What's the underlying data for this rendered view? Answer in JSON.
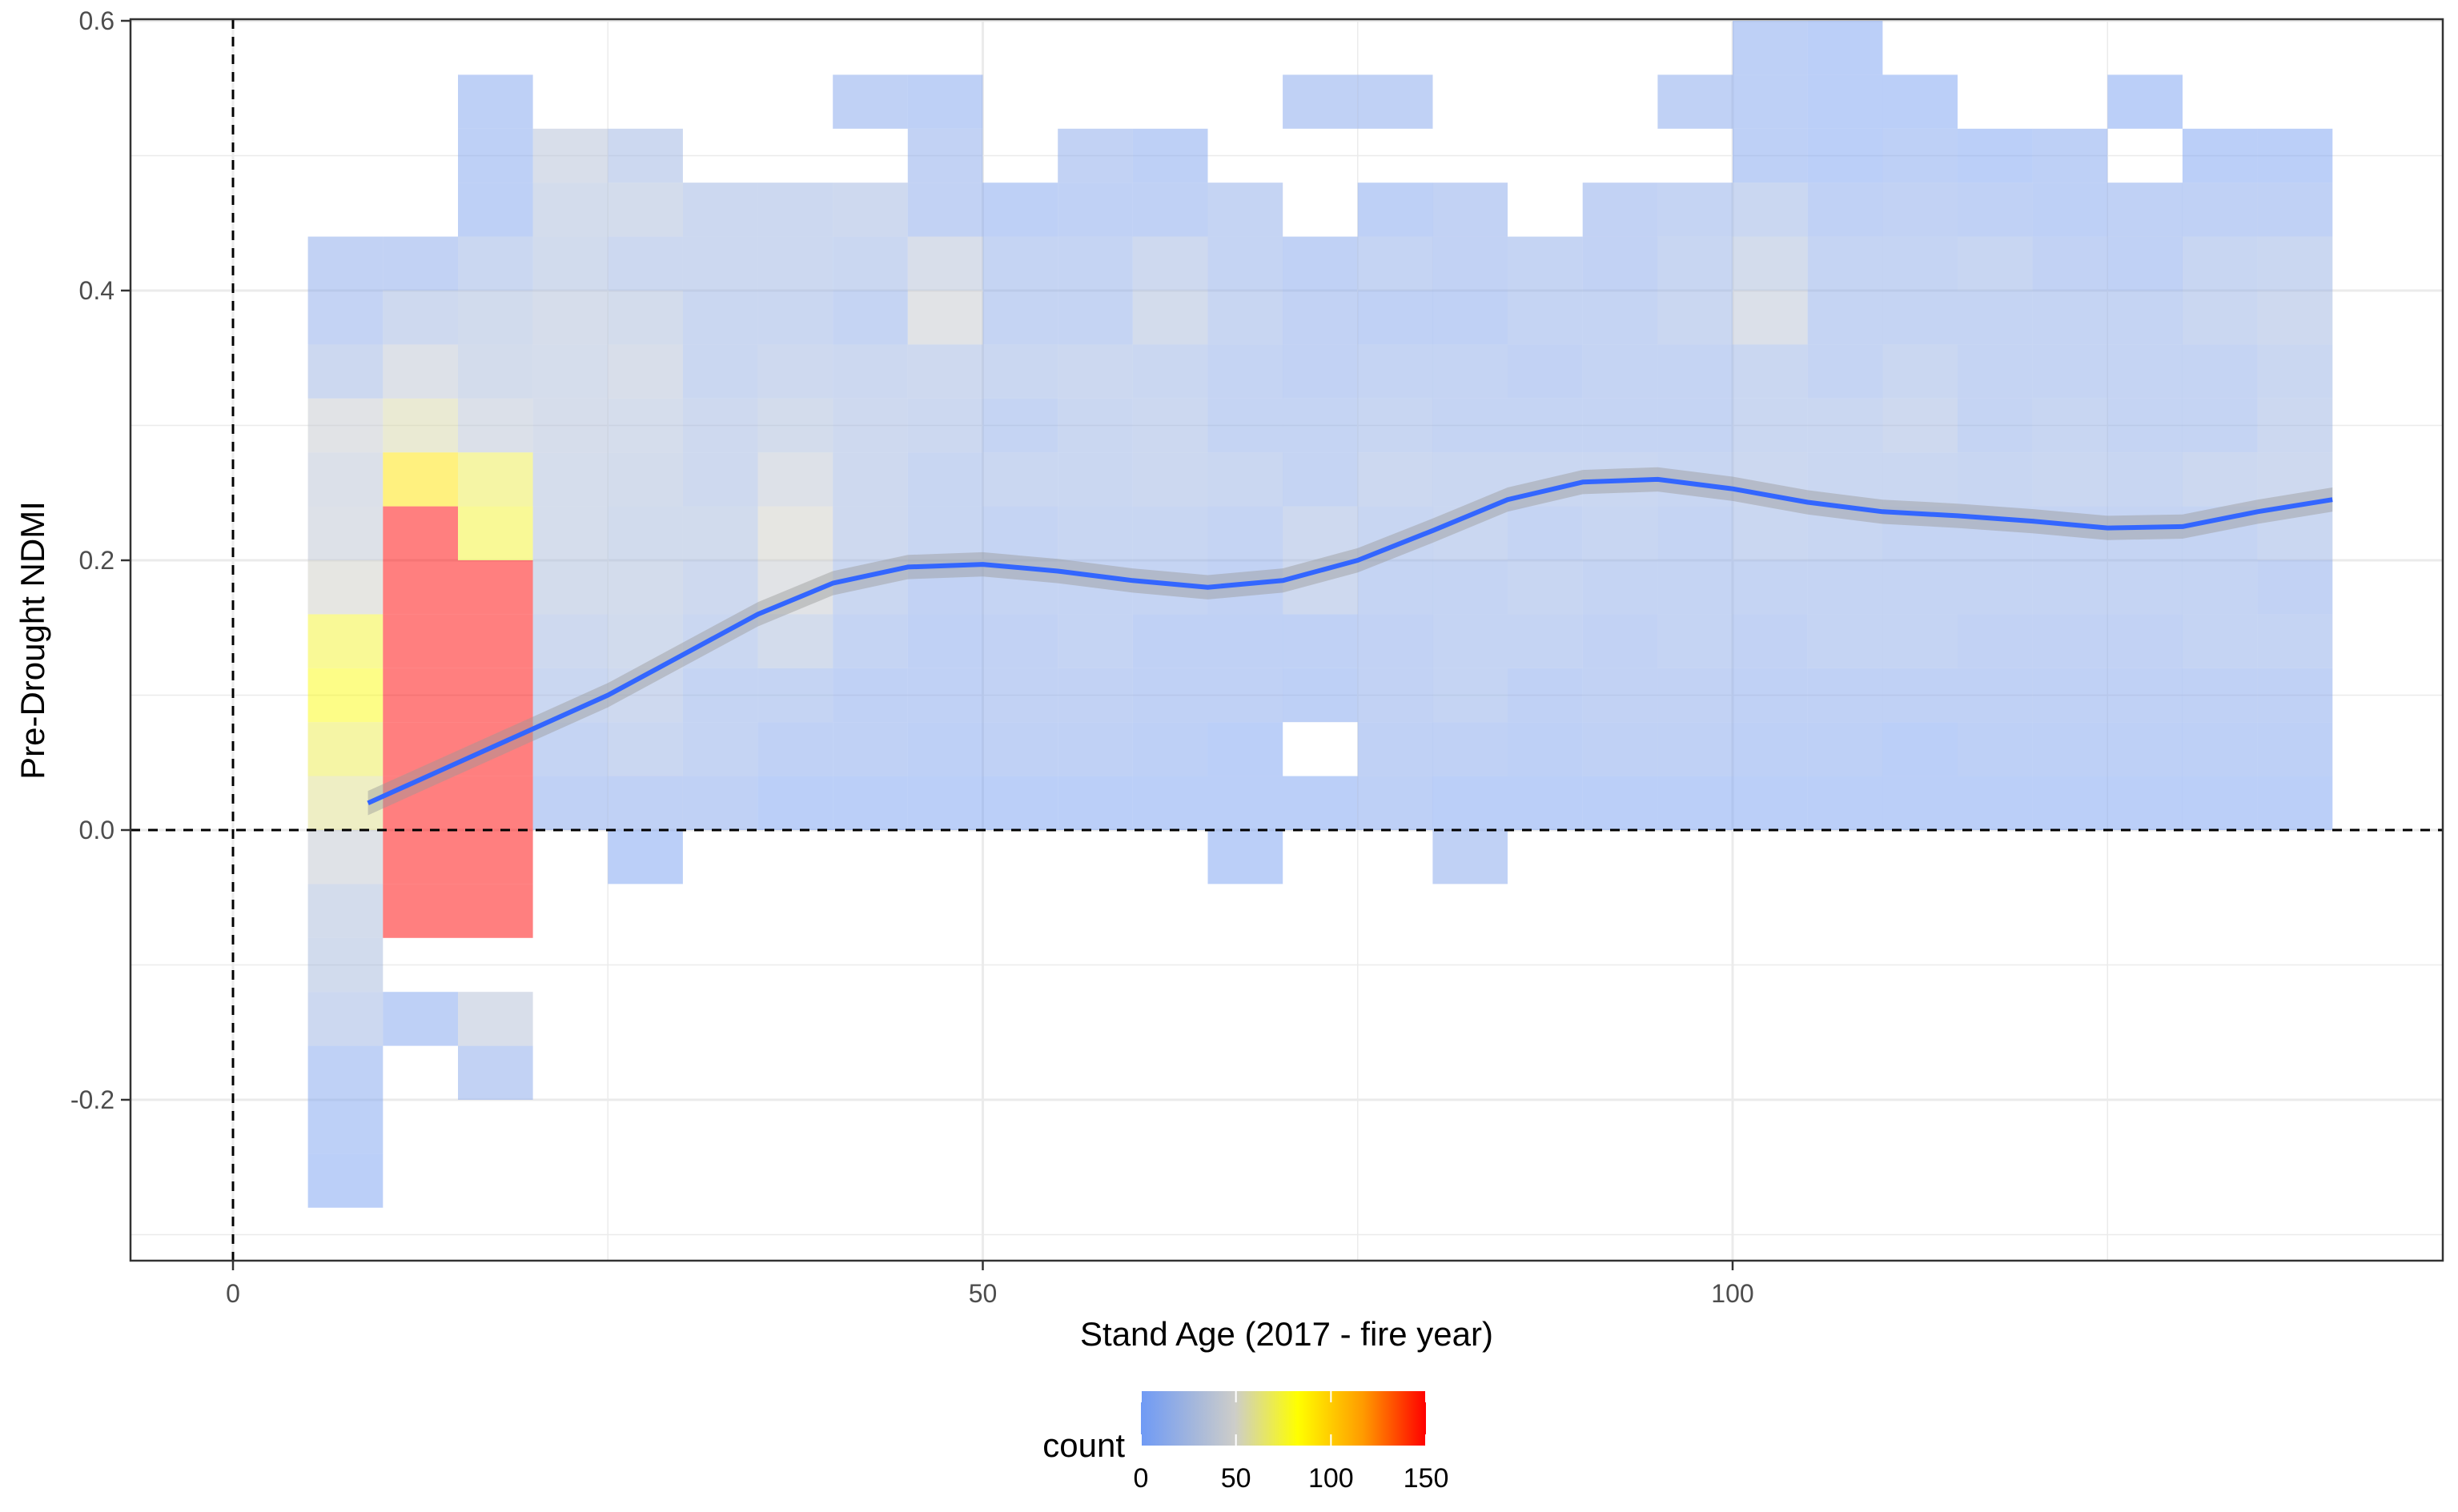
{
  "chart_data": {
    "type": "heatmap",
    "title": "",
    "xlabel": "Stand Age (2017 - fire year)",
    "ylabel": "Pre-Drought NDMI",
    "x_ticks": [
      0,
      50,
      100
    ],
    "x_tick_labels": [
      "0",
      "50",
      "100"
    ],
    "y_ticks": [
      -0.2,
      0.0,
      0.2,
      0.4,
      0.6
    ],
    "y_tick_labels": [
      "-0.2",
      "0.0",
      "0.2",
      "0.4",
      "0.6"
    ],
    "xlim": [
      -7,
      147
    ],
    "ylim": [
      -0.32,
      0.6
    ],
    "grid": true,
    "bin_width_x": 5,
    "bin_height_y": 0.04,
    "x_start": 5,
    "y_start": -0.28,
    "reference_lines": [
      {
        "orientation": "vertical",
        "value": 0,
        "style": "dashed"
      },
      {
        "orientation": "horizontal",
        "value": 0,
        "style": "dashed"
      }
    ],
    "smooth": {
      "color": "#3366ff",
      "points": [
        [
          9,
          0.02
        ],
        [
          14,
          0.045
        ],
        [
          20,
          0.075
        ],
        [
          25,
          0.1
        ],
        [
          30,
          0.13
        ],
        [
          35,
          0.16
        ],
        [
          40,
          0.183
        ],
        [
          45,
          0.195
        ],
        [
          50,
          0.197
        ],
        [
          55,
          0.192
        ],
        [
          60,
          0.185
        ],
        [
          65,
          0.18
        ],
        [
          70,
          0.185
        ],
        [
          75,
          0.2
        ],
        [
          80,
          0.222
        ],
        [
          85,
          0.245
        ],
        [
          90,
          0.258
        ],
        [
          95,
          0.26
        ],
        [
          100,
          0.253
        ],
        [
          105,
          0.243
        ],
        [
          110,
          0.236
        ],
        [
          115,
          0.233
        ],
        [
          120,
          0.229
        ],
        [
          125,
          0.224
        ],
        [
          130,
          0.225
        ],
        [
          135,
          0.236
        ],
        [
          140,
          0.245
        ]
      ]
    },
    "bins": [
      [
        5,
        7,
        9,
        22,
        28,
        30,
        42,
        60,
        70,
        80,
        75,
        50,
        40,
        38,
        45,
        22,
        14,
        12,
        0,
        0,
        0,
        0,
        0
      ],
      [
        0,
        0,
        0,
        8,
        0,
        150,
        150,
        150,
        150,
        150,
        150,
        150,
        150,
        90,
        55,
        40,
        25,
        12,
        0,
        0,
        0,
        0,
        0
      ],
      [
        0,
        0,
        12,
        35,
        0,
        150,
        150,
        150,
        150,
        150,
        150,
        150,
        75,
        70,
        38,
        30,
        28,
        20,
        8,
        8,
        8,
        0,
        0
      ],
      [
        0,
        0,
        0,
        0,
        0,
        0,
        0,
        10,
        15,
        20,
        25,
        30,
        32,
        32,
        33,
        32,
        33,
        28,
        30,
        35,
        0,
        0,
        0
      ],
      [
        0,
        0,
        0,
        0,
        0,
        0,
        5,
        10,
        20,
        25,
        28,
        30,
        28,
        30,
        32,
        35,
        30,
        22,
        30,
        22,
        0,
        0,
        0
      ],
      [
        0,
        0,
        0,
        0,
        0,
        0,
        0,
        10,
        15,
        15,
        20,
        25,
        28,
        25,
        25,
        20,
        20,
        22,
        22,
        0,
        0,
        0,
        0
      ],
      [
        0,
        0,
        0,
        0,
        0,
        0,
        0,
        5,
        10,
        15,
        30,
        45,
        50,
        40,
        30,
        25,
        20,
        22,
        22,
        0,
        0,
        0,
        0
      ],
      [
        0,
        0,
        0,
        0,
        0,
        0,
        0,
        5,
        10,
        10,
        15,
        20,
        25,
        25,
        25,
        22,
        15,
        20,
        25,
        0,
        10,
        0,
        0
      ],
      [
        0,
        0,
        0,
        0,
        0,
        0,
        0,
        5,
        8,
        10,
        10,
        12,
        18,
        18,
        22,
        25,
        45,
        35,
        12,
        12,
        8,
        0,
        0
      ],
      [
        0,
        0,
        0,
        0,
        0,
        0,
        0,
        5,
        10,
        12,
        12,
        15,
        15,
        20,
        15,
        20,
        15,
        15,
        8,
        0,
        0,
        0,
        0
      ],
      [
        0,
        0,
        0,
        0,
        0,
        0,
        0,
        5,
        10,
        12,
        15,
        15,
        18,
        20,
        20,
        22,
        15,
        15,
        10,
        12,
        0,
        0,
        0
      ],
      [
        0,
        0,
        0,
        0,
        0,
        0,
        0,
        5,
        8,
        10,
        10,
        15,
        18,
        22,
        22,
        20,
        30,
        25,
        10,
        8,
        0,
        0,
        0
      ],
      [
        0,
        0,
        0,
        0,
        0,
        0,
        5,
        5,
        5,
        10,
        10,
        12,
        15,
        20,
        15,
        15,
        18,
        15,
        15,
        0,
        0,
        0,
        0
      ],
      [
        0,
        0,
        0,
        0,
        0,
        0,
        0,
        5,
        0,
        8,
        10,
        25,
        25,
        15,
        15,
        12,
        12,
        10,
        0,
        0,
        10,
        0,
        0
      ],
      [
        0,
        0,
        0,
        0,
        0,
        0,
        0,
        8,
        10,
        12,
        12,
        15,
        18,
        22,
        18,
        15,
        10,
        15,
        8,
        0,
        10,
        0,
        0
      ],
      [
        0,
        0,
        0,
        0,
        0,
        0,
        10,
        5,
        10,
        15,
        15,
        15,
        20,
        20,
        15,
        15,
        10,
        12,
        12,
        0,
        0,
        0,
        0
      ],
      [
        0,
        0,
        0,
        0,
        0,
        0,
        0,
        5,
        8,
        10,
        15,
        18,
        15,
        20,
        15,
        12,
        15,
        15,
        0,
        0,
        0,
        0,
        0
      ],
      [
        0,
        0,
        0,
        0,
        0,
        0,
        0,
        5,
        10,
        12,
        12,
        15,
        18,
        20,
        15,
        15,
        15,
        12,
        12,
        0,
        0,
        0,
        0
      ],
      [
        0,
        0,
        0,
        0,
        0,
        0,
        0,
        5,
        10,
        12,
        15,
        15,
        15,
        18,
        15,
        15,
        20,
        18,
        15,
        0,
        10,
        0,
        0
      ],
      [
        0,
        0,
        0,
        0,
        0,
        0,
        0,
        5,
        8,
        10,
        12,
        15,
        20,
        22,
        20,
        20,
        38,
        30,
        20,
        8,
        8,
        8,
        0
      ],
      [
        0,
        0,
        0,
        0,
        0,
        0,
        0,
        5,
        8,
        10,
        15,
        15,
        18,
        20,
        20,
        15,
        15,
        15,
        10,
        5,
        5,
        5,
        0
      ],
      [
        0,
        0,
        0,
        0,
        0,
        0,
        0,
        5,
        5,
        10,
        15,
        15,
        15,
        20,
        25,
        20,
        15,
        15,
        12,
        8,
        5,
        0,
        0
      ],
      [
        0,
        0,
        0,
        0,
        0,
        0,
        0,
        5,
        8,
        10,
        12,
        15,
        15,
        18,
        15,
        15,
        15,
        18,
        10,
        5,
        0,
        0,
        0
      ],
      [
        0,
        0,
        0,
        0,
        0,
        0,
        0,
        5,
        8,
        10,
        12,
        15,
        15,
        20,
        18,
        15,
        15,
        12,
        8,
        8,
        0,
        0,
        0
      ],
      [
        0,
        0,
        0,
        0,
        0,
        0,
        0,
        5,
        8,
        10,
        12,
        15,
        15,
        18,
        15,
        15,
        15,
        10,
        10,
        0,
        5,
        0,
        0
      ],
      [
        0,
        0,
        0,
        0,
        0,
        0,
        0,
        5,
        8,
        10,
        15,
        15,
        15,
        22,
        15,
        15,
        20,
        18,
        10,
        5,
        0,
        0,
        0
      ],
      [
        0,
        0,
        0,
        0,
        0,
        0,
        0,
        5,
        8,
        10,
        15,
        12,
        20,
        25,
        22,
        20,
        25,
        20,
        10,
        5,
        0,
        0,
        0
      ]
    ],
    "fill_scale": {
      "title": "count",
      "breaks": [
        0,
        50,
        100,
        150
      ],
      "break_labels": [
        "0",
        "50",
        "100",
        "150"
      ],
      "colors": [
        "#6f9af5",
        "#cdcdc9",
        "#ffff00",
        "#ff7f00",
        "#ff0000"
      ],
      "bin_alpha": 0.5
    }
  }
}
